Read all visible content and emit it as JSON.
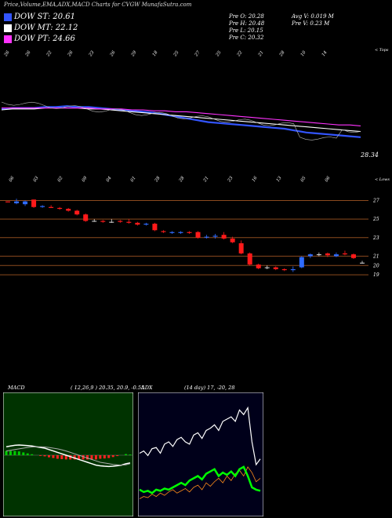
{
  "header": {
    "title": "Price,Volume,EMA,ADX,MACD Charts for CVGW MunafaSutra.com",
    "legend": [
      {
        "label": "DOW ST: 20.61",
        "color": "#3355ff"
      },
      {
        "label": "DOW MT: 22.12",
        "color": "#ffffff"
      },
      {
        "label": "DOW PT: 24.66",
        "color": "#ff33ff"
      }
    ],
    "quote_left": [
      "Pre   O: 20.28",
      "Pre   H: 20.48",
      "Pre   L: 20.15",
      "Pre   C: 20.32"
    ],
    "quote_right": [
      "Avg V: 0.019 M",
      "Pre   V: 0.23 M"
    ]
  },
  "chart_data": [
    {
      "type": "line",
      "panel": "ema",
      "top_label": "< Tops",
      "bottom_label": "< Lows",
      "last_price_label": "28.34",
      "date_labels_top": [
        "26",
        "26",
        "22",
        "26",
        "23",
        "26",
        "29",
        "18",
        "25",
        "27",
        "25",
        "22",
        "21",
        "28",
        "10",
        "14"
      ],
      "date_labels_bottom": [
        "06",
        "03",
        "02",
        "09",
        "04",
        "01",
        "28",
        "28",
        "21",
        "23",
        "16",
        "13",
        "05",
        "06"
      ],
      "series": [
        {
          "name": "",
          "color": "#3355ff",
          "values": [
            9,
            8,
            8,
            8,
            7,
            7,
            6,
            7,
            7,
            8,
            9,
            10,
            11,
            12,
            13,
            15,
            17,
            19,
            21,
            23,
            24,
            25,
            26,
            27,
            28,
            29,
            30,
            32,
            34,
            35,
            36,
            37,
            38,
            39
          ]
        },
        {
          "name": "",
          "color": "#ffffff",
          "values": [
            10,
            9,
            9,
            9,
            8,
            8,
            8,
            8,
            9,
            9,
            10,
            11,
            12,
            13,
            14,
            15,
            16,
            17,
            18,
            19,
            20,
            21,
            22,
            23,
            24,
            25,
            26,
            27,
            28,
            29,
            30,
            31,
            32,
            33
          ]
        },
        {
          "name": "",
          "color": "#ff33ff",
          "values": [
            8,
            8,
            8,
            8,
            8,
            8,
            8,
            8,
            8,
            9,
            9,
            9,
            10,
            10,
            11,
            11,
            12,
            12,
            13,
            14,
            15,
            16,
            17,
            18,
            19,
            20,
            21,
            22,
            23,
            24,
            25,
            26,
            26,
            27
          ]
        }
      ]
    },
    {
      "type": "candlestick",
      "panel": "price",
      "ylim": [
        18.5,
        27.8
      ],
      "y_ticks": [
        27,
        25,
        23,
        21,
        20,
        19
      ],
      "candles": [
        [
          26.9,
          26.9,
          26.8,
          26.8
        ],
        [
          26.7,
          27.2,
          26.6,
          26.9
        ],
        [
          26.6,
          27.0,
          26.4,
          26.9
        ],
        [
          27.1,
          27.1,
          26.2,
          26.3
        ],
        [
          26.3,
          26.5,
          26.2,
          26.4
        ],
        [
          26.3,
          26.5,
          26.2,
          26.2
        ],
        [
          26.2,
          26.3,
          26.0,
          26.1
        ],
        [
          26.1,
          26.2,
          25.8,
          25.9
        ],
        [
          25.9,
          26.0,
          25.4,
          25.5
        ],
        [
          25.5,
          25.6,
          24.7,
          24.8
        ],
        [
          24.8,
          25.0,
          24.7,
          24.8
        ],
        [
          24.8,
          24.9,
          24.6,
          24.7
        ],
        [
          24.7,
          25.0,
          24.6,
          24.7
        ],
        [
          24.8,
          24.9,
          24.6,
          24.7
        ],
        [
          24.7,
          25.0,
          24.5,
          24.6
        ],
        [
          24.6,
          24.7,
          24.3,
          24.4
        ],
        [
          24.4,
          24.6,
          24.3,
          24.5
        ],
        [
          24.5,
          24.6,
          23.7,
          23.8
        ],
        [
          23.7,
          23.8,
          23.5,
          23.6
        ],
        [
          23.5,
          23.7,
          23.4,
          23.6
        ],
        [
          23.5,
          23.7,
          23.4,
          23.6
        ],
        [
          23.6,
          23.7,
          23.4,
          23.5
        ],
        [
          23.6,
          23.7,
          22.9,
          23.0
        ],
        [
          23.0,
          23.3,
          22.9,
          23.1
        ],
        [
          23.1,
          23.4,
          22.9,
          23.2
        ],
        [
          23.3,
          23.6,
          22.8,
          22.9
        ],
        [
          22.9,
          23.1,
          22.4,
          22.5
        ],
        [
          22.4,
          22.7,
          21.2,
          21.3
        ],
        [
          21.3,
          21.4,
          20.0,
          20.1
        ],
        [
          20.1,
          20.2,
          19.6,
          19.7
        ],
        [
          19.8,
          20.0,
          19.6,
          19.8
        ],
        [
          19.8,
          19.9,
          19.5,
          19.6
        ],
        [
          19.6,
          19.7,
          19.4,
          19.5
        ],
        [
          19.5,
          19.9,
          19.3,
          19.6
        ],
        [
          19.8,
          21.0,
          19.7,
          20.9
        ],
        [
          21.0,
          21.3,
          20.8,
          21.2
        ],
        [
          21.2,
          21.4,
          21.0,
          21.2
        ],
        [
          21.3,
          21.4,
          20.9,
          21.1
        ],
        [
          21.0,
          21.4,
          20.9,
          21.2
        ],
        [
          21.3,
          21.6,
          21.1,
          21.2
        ],
        [
          21.2,
          21.3,
          20.7,
          20.8
        ],
        [
          20.3,
          20.5,
          20.2,
          20.3
        ]
      ]
    },
    {
      "type": "line",
      "panel": "macd",
      "title": "MACD",
      "params": "( 12,26,9 ) 20.35, 20.9, -0.55",
      "macd": [
        0.6,
        0.65,
        0.7,
        0.72,
        0.7,
        0.68,
        0.65,
        0.6,
        0.55,
        0.5,
        0.4,
        0.3,
        0.2,
        0.1,
        0,
        -0.1,
        -0.2,
        -0.3,
        -0.4,
        -0.5,
        -0.6,
        -0.7,
        -0.75,
        -0.78,
        -0.8,
        -0.78,
        -0.74,
        -0.7,
        -0.6,
        -0.55
      ],
      "signal": [
        0.3,
        0.35,
        0.4,
        0.45,
        0.5,
        0.55,
        0.58,
        0.6,
        0.6,
        0.58,
        0.55,
        0.5,
        0.45,
        0.38,
        0.3,
        0.2,
        0.1,
        0,
        -0.1,
        -0.2,
        -0.3,
        -0.4,
        -0.5,
        -0.55,
        -0.6,
        -0.65,
        -0.68,
        -0.7,
        -0.68,
        -0.6
      ]
    },
    {
      "type": "line",
      "panel": "adx",
      "title": "ADX",
      "params": "(14 day) 17, -20, 28",
      "di_plus": [
        18,
        16,
        17,
        15,
        18,
        17,
        19,
        18,
        20,
        22,
        24,
        22,
        26,
        28,
        30,
        27,
        32,
        34,
        36,
        30,
        33,
        31,
        34,
        30,
        36,
        38,
        30,
        20,
        18,
        17
      ],
      "di_minus": [
        50,
        52,
        48,
        54,
        55,
        50,
        58,
        60,
        56,
        62,
        64,
        60,
        58,
        66,
        68,
        63,
        70,
        72,
        75,
        70,
        78,
        80,
        82,
        78,
        88,
        84,
        90,
        60,
        40,
        45
      ],
      "adx": [
        10,
        12,
        11,
        14,
        12,
        15,
        13,
        16,
        18,
        15,
        17,
        19,
        16,
        20,
        22,
        18,
        24,
        21,
        25,
        28,
        24,
        30,
        26,
        32,
        35,
        30,
        38,
        33,
        25,
        28
      ]
    }
  ]
}
